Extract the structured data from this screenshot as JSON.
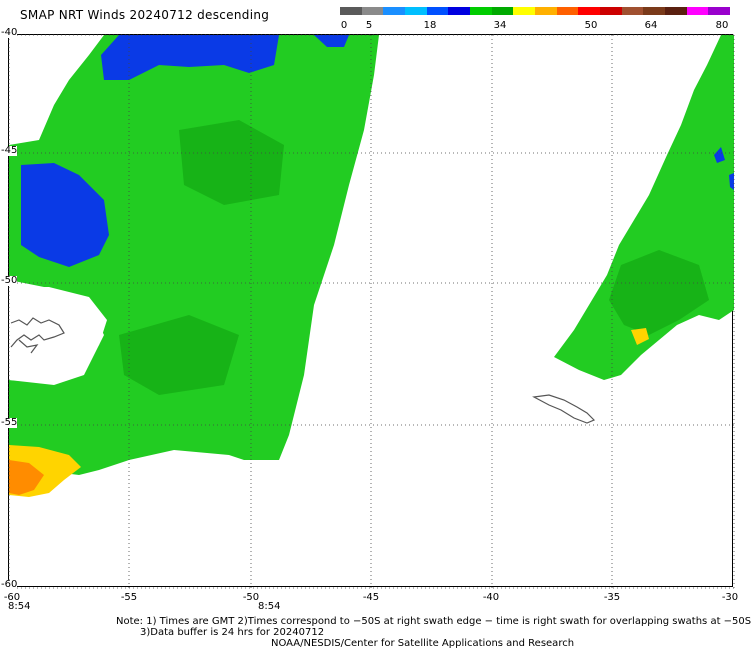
{
  "title": "SMAP NRT Winds  20240712 descending",
  "colorbar": {
    "labels": [
      "0",
      "5",
      "18",
      "34",
      "50",
      "64",
      "80"
    ],
    "segments": [
      "#5a5a5a",
      "#8a8a8a",
      "#1a8fff",
      "#00bfff",
      "#0050ff",
      "#0000e0",
      "#00cc00",
      "#00aa00",
      "#ffff00",
      "#ffb000",
      "#ff6000",
      "#ff0000",
      "#cc0000",
      "#a05030",
      "#7a3a1a",
      "#5a2010",
      "#ff00ff",
      "#9900cc"
    ]
  },
  "map": {
    "lat_labels": [
      "-40",
      "-45",
      "-50",
      "-55",
      "-60"
    ],
    "lon_labels": [
      "-60",
      "-55",
      "-50",
      "-45",
      "-40",
      "-35",
      "-30"
    ],
    "colors": {
      "wind_green": "#22cc22",
      "wind_dark_green": "#0f9e0f",
      "wind_blue": "#0a3ae6",
      "wind_yellow": "#ffd400",
      "wind_orange": "#ff8c00",
      "coast": "#555555",
      "grid": "#444444"
    }
  },
  "times": {
    "left": "8:54",
    "mid": "8:54"
  },
  "notes": {
    "line1": "Note: 1) Times are GMT 2)Times correspond to −50S at right swath edge − time is right swath for overlapping swaths at −50S",
    "line2": "3)Data buffer is 24 hrs for 20240712",
    "line3": "NOAA/NESDIS/Center for Satellite Applications and Research"
  }
}
